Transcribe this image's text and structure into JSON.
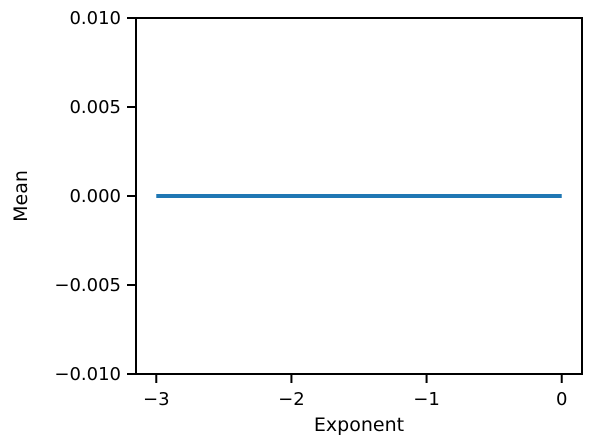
{
  "chart_data": {
    "type": "line",
    "title": "",
    "xlabel": "Exponent",
    "ylabel": "Mean",
    "xlim": [
      -3.15,
      0.15
    ],
    "ylim": [
      -0.01,
      0.01
    ],
    "xticks": [
      -3,
      -2,
      -1,
      0
    ],
    "xtick_labels": [
      "−3",
      "−2",
      "−1",
      "0"
    ],
    "yticks": [
      -0.01,
      -0.005,
      0.0,
      0.005,
      0.01
    ],
    "ytick_labels": [
      "−0.010",
      "−0.005",
      "0.000",
      "0.005",
      "0.010"
    ],
    "grid": false,
    "series": [
      {
        "color": "#1f77b4",
        "x": [
          -3,
          -2.5,
          -2,
          -1.5,
          -1,
          -0.5,
          0
        ],
        "y": [
          0,
          0,
          0,
          0,
          0,
          0,
          0
        ]
      }
    ]
  }
}
